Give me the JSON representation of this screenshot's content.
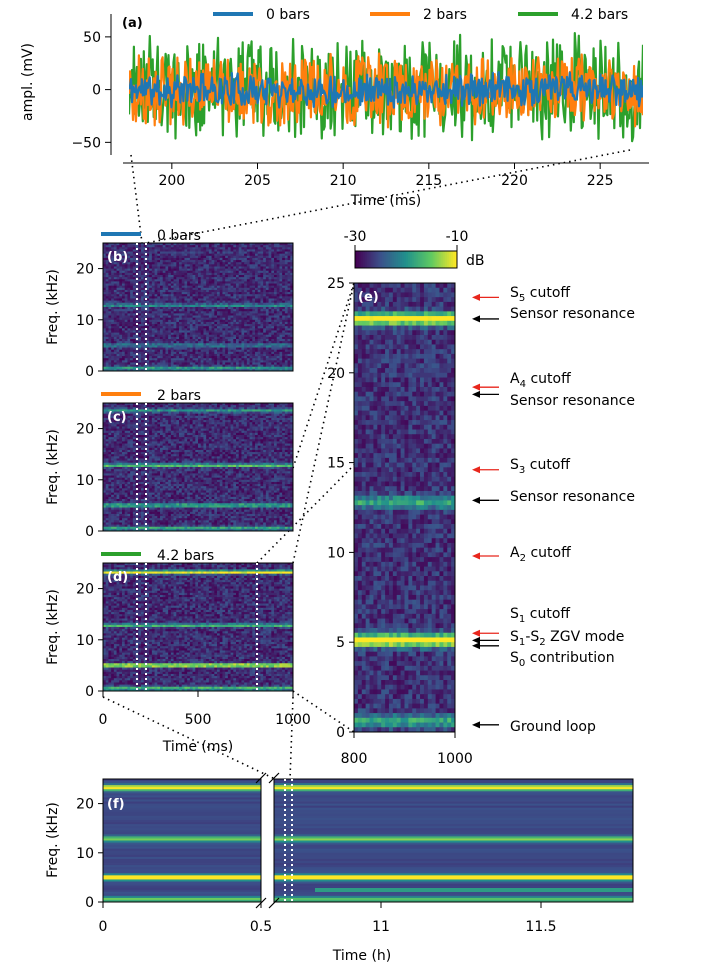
{
  "colors": {
    "series_0": "#1f77b4",
    "series_2": "#ff7f0e",
    "series_42": "#2ca02c",
    "spec_low": "#3b2a6b",
    "spec_mid": "#25838e",
    "spec_high": "#fde725",
    "arrow_red": "#e8261c",
    "arrow_black": "#000000"
  },
  "chart_data": [
    {
      "id": "a",
      "type": "line",
      "panel_label": "(a)",
      "xlabel": "Time (ms)",
      "ylabel": "ampl. (mV)",
      "xlim": [
        197.5,
        227.5
      ],
      "ylim": [
        -62,
        66
      ],
      "xticks": [
        200,
        205,
        210,
        215,
        220,
        225
      ],
      "yticks": [
        50,
        0,
        -50
      ],
      "ytick_labels": [
        "50",
        "0",
        "−50"
      ],
      "legend_position": "top",
      "series": [
        {
          "name": "0 bars",
          "color_key": "series_0",
          "amplitude_mV": 18
        },
        {
          "name": "2 bars",
          "color_key": "series_2",
          "amplitude_mV": 38
        },
        {
          "name": "4.2 bars",
          "color_key": "series_42",
          "amplitude_mV": 55
        }
      ]
    },
    {
      "id": "b",
      "type": "heatmap",
      "panel_label": "(b)",
      "legend": "0 bars",
      "color_key": "series_0",
      "xlim": [
        0,
        1000
      ],
      "ylim": [
        0,
        25
      ],
      "yticks": [
        0,
        10,
        20
      ],
      "ylabel": "Freq. (kHz)",
      "bands_kHz": [
        {
          "f": 0.5,
          "level": 0.45
        },
        {
          "f": 5,
          "level": 0.3
        },
        {
          "f": 12.8,
          "level": 0.35
        }
      ]
    },
    {
      "id": "c",
      "type": "heatmap",
      "panel_label": "(c)",
      "legend": "2 bars",
      "color_key": "series_2",
      "xlim": [
        0,
        1000
      ],
      "ylim": [
        0,
        25
      ],
      "yticks": [
        0,
        10,
        20
      ],
      "ylabel": "Freq. (kHz)",
      "bands_kHz": [
        {
          "f": 0.5,
          "level": 0.5
        },
        {
          "f": 5,
          "level": 0.55
        },
        {
          "f": 12.8,
          "level": 0.6
        },
        {
          "f": 23.5,
          "level": 0.4
        }
      ]
    },
    {
      "id": "d",
      "type": "heatmap",
      "panel_label": "(d)",
      "legend": "4.2 bars",
      "color_key": "series_42",
      "xlim": [
        0,
        1000
      ],
      "ylim": [
        0,
        25
      ],
      "yticks": [
        0,
        10,
        20
      ],
      "xticks": [
        0,
        500,
        1000
      ],
      "xlabel": "Time (ms)",
      "ylabel": "Freq. (kHz)",
      "bands_kHz": [
        {
          "f": 0.5,
          "level": 0.6
        },
        {
          "f": 5,
          "level": 0.95
        },
        {
          "f": 12.8,
          "level": 0.55
        },
        {
          "f": 23.2,
          "level": 0.9
        }
      ]
    },
    {
      "id": "e",
      "type": "heatmap",
      "panel_label": "(e)",
      "xlim": [
        800,
        1000
      ],
      "ylim": [
        0,
        25
      ],
      "xticks": [
        800,
        1000
      ],
      "yticks": [
        0,
        5,
        10,
        15,
        20,
        25
      ],
      "colorbar": {
        "min": -30,
        "max": -10,
        "ticks": [
          "-30",
          "-10"
        ],
        "unit": "dB"
      },
      "bands_kHz": [
        {
          "f": 0.6,
          "level": 0.45
        },
        {
          "f": 5.1,
          "level": 1.0
        },
        {
          "f": 12.8,
          "level": 0.45
        },
        {
          "f": 23.0,
          "level": 0.95
        }
      ],
      "annotations": [
        {
          "f": 24.2,
          "arrow": "red",
          "label": "S₅ cutoff"
        },
        {
          "f": 23.0,
          "arrow": "black",
          "label": "Sensor resonance"
        },
        {
          "f": 19.2,
          "arrow": "red",
          "label": "A₄ cutoff"
        },
        {
          "f": 18.8,
          "arrow": "black",
          "label": "Sensor resonance"
        },
        {
          "f": 14.6,
          "arrow": "red",
          "label": "S₃ cutoff"
        },
        {
          "f": 12.9,
          "arrow": "black",
          "label": "Sensor resonance"
        },
        {
          "f": 9.8,
          "arrow": "red",
          "label": "A₂ cutoff"
        },
        {
          "f": 5.5,
          "arrow": "red",
          "label": "S₁ cutoff"
        },
        {
          "f": 5.1,
          "arrow": "black",
          "label": "S₁-S₂ ZGV mode"
        },
        {
          "f": 4.8,
          "arrow": "black",
          "label": "S₀ contribution"
        },
        {
          "f": 0.4,
          "arrow": "black",
          "label": "Ground loop"
        }
      ]
    },
    {
      "id": "f",
      "type": "heatmap",
      "panel_label": "(f)",
      "xlabel": "Time (h)",
      "ylabel": "Freq. (kHz)",
      "ylim": [
        0,
        25
      ],
      "yticks": [
        0,
        10,
        20
      ],
      "xticks_left": [
        "0",
        "0.5"
      ],
      "xticks_right": [
        "11",
        "11.5"
      ],
      "bands_kHz": [
        {
          "f": 0.5,
          "level": 0.55
        },
        {
          "f": 5,
          "level": 0.95
        },
        {
          "f": 12.8,
          "level": 0.6
        },
        {
          "f": 23.2,
          "level": 0.95
        }
      ]
    }
  ]
}
